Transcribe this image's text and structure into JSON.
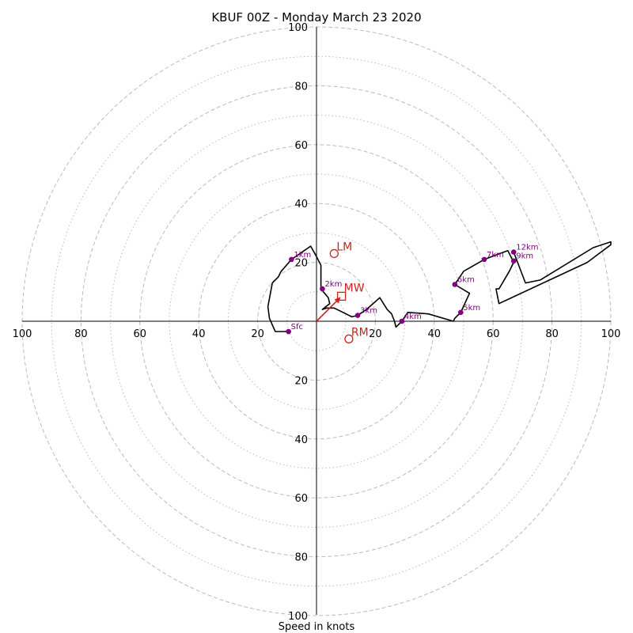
{
  "chart_data": {
    "type": "hodograph",
    "title": "KBUF 00Z - Monday March 23 2020",
    "xlabel": "Speed in knots",
    "xlim": [
      -100,
      100
    ],
    "ylim": [
      -100,
      100
    ],
    "x_tick_labels": [
      "100",
      "80",
      "60",
      "40",
      "20",
      "20",
      "40",
      "60",
      "80",
      "100"
    ],
    "y_tick_labels": [
      "100",
      "80",
      "60",
      "40",
      "20",
      "20",
      "40",
      "60",
      "80",
      "100"
    ],
    "dashed_ring_speeds": [
      20,
      40,
      60,
      80,
      100
    ],
    "dotted_ring_speeds": [
      10,
      30,
      50,
      70,
      90
    ],
    "grid": true,
    "colors": {
      "trace": "#000000",
      "height_markers": "#800080",
      "motion": "#cc2222",
      "grid": "#bbbbbb"
    },
    "trace": [
      {
        "u": -10,
        "v": -3.5
      },
      {
        "u": -14,
        "v": -3.5
      },
      {
        "u": -16,
        "v": 1
      },
      {
        "u": -16.5,
        "v": 5
      },
      {
        "u": -15,
        "v": 13
      },
      {
        "u": -13,
        "v": 15
      },
      {
        "u": -12,
        "v": 17
      },
      {
        "u": -8.5,
        "v": 21
      },
      {
        "u": -2,
        "v": 25.5
      },
      {
        "u": 0,
        "v": 22
      },
      {
        "u": 1.5,
        "v": 19
      },
      {
        "u": 1.5,
        "v": 11
      },
      {
        "u": 4,
        "v": 8
      },
      {
        "u": 4.5,
        "v": 6
      },
      {
        "u": 2,
        "v": 4
      },
      {
        "u": 3.5,
        "v": 4.5
      },
      {
        "u": 6,
        "v": 4.5
      },
      {
        "u": 9,
        "v": 3
      },
      {
        "u": 12,
        "v": 1.5
      },
      {
        "u": 14,
        "v": 2
      },
      {
        "u": 17,
        "v": 4
      },
      {
        "u": 21.5,
        "v": 8
      },
      {
        "u": 24,
        "v": 4
      },
      {
        "u": 25.5,
        "v": 2.5
      },
      {
        "u": 26.5,
        "v": 0
      },
      {
        "u": 27,
        "v": -2
      },
      {
        "u": 27.5,
        "v": -1.5
      },
      {
        "u": 29,
        "v": 0
      },
      {
        "u": 31,
        "v": 3
      },
      {
        "u": 38,
        "v": 2.5
      },
      {
        "u": 46.5,
        "v": 0
      },
      {
        "u": 47,
        "v": 1
      },
      {
        "u": 49,
        "v": 3
      },
      {
        "u": 52,
        "v": 9.5
      },
      {
        "u": 47,
        "v": 12.5
      },
      {
        "u": 50,
        "v": 17
      },
      {
        "u": 57,
        "v": 21
      },
      {
        "u": 61,
        "v": 22.5
      },
      {
        "u": 65,
        "v": 24
      },
      {
        "u": 67,
        "v": 20
      },
      {
        "u": 65.5,
        "v": 17
      },
      {
        "u": 62,
        "v": 11
      },
      {
        "u": 61,
        "v": 11
      },
      {
        "u": 62,
        "v": 6
      },
      {
        "u": 92,
        "v": 20
      },
      {
        "u": 100,
        "v": 26
      },
      {
        "u": 100,
        "v": 27
      },
      {
        "u": 94,
        "v": 25
      },
      {
        "u": 76,
        "v": 14
      },
      {
        "u": 71,
        "v": 13
      },
      {
        "u": 67,
        "v": 23.5
      }
    ],
    "height_markers": [
      {
        "label": "Sfc",
        "u": -9.5,
        "v": -3.5
      },
      {
        "label": "1km",
        "u": -8.5,
        "v": 21
      },
      {
        "label": "2km",
        "u": 2,
        "v": 11
      },
      {
        "label": "3km",
        "u": 14,
        "v": 2
      },
      {
        "label": "4km",
        "u": 29,
        "v": 0
      },
      {
        "label": "5km",
        "u": 49,
        "v": 3
      },
      {
        "label": "6km",
        "u": 47,
        "v": 12.5
      },
      {
        "label": "7km",
        "u": 57,
        "v": 21
      },
      {
        "label": "9km",
        "u": 67,
        "v": 20.5
      },
      {
        "label": "12km",
        "u": 67,
        "v": 23.5
      }
    ],
    "storm_motion": {
      "mean_wind": {
        "label": "MW",
        "u": 8.5,
        "v": 8.5
      },
      "left_mover": {
        "label": "LM",
        "u": 6,
        "v": 23
      },
      "right_mover": {
        "label": "RM",
        "u": 11,
        "v": -6
      }
    }
  }
}
